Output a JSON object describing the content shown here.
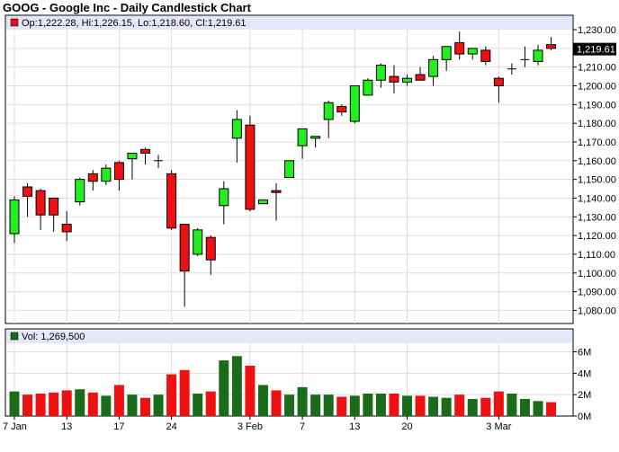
{
  "chart_data": {
    "type": "candlestick",
    "title": "GOOG - Google Inc - Daily Candlestick Chart",
    "legend": {
      "price_label": "Op:1,222.28, Hi:1,226.15, Lo:1,218.60, Cl:1,219.61",
      "volume_label": "Vol: 1,269,500",
      "last_price_label": "1,219.61",
      "last_price": 1219.61
    },
    "price_axis": {
      "ylim": [
        1073,
        1230
      ],
      "ticks": [
        1080,
        1090,
        1100,
        1110,
        1120,
        1130,
        1140,
        1150,
        1160,
        1170,
        1180,
        1190,
        1200,
        1210,
        1220,
        1230
      ],
      "tick_labels": [
        "1,080.00",
        "1,090.00",
        "1,100.00",
        "1,110.00",
        "1,120.00",
        "1,130.00",
        "1,140.00",
        "1,150.00",
        "1,160.00",
        "1,170.00",
        "1,180.00",
        "1,190.00",
        "1,200.00",
        "1,210.00",
        "1,220.00",
        "1,230.00"
      ]
    },
    "volume_axis": {
      "ylim": [
        0,
        6.8
      ],
      "ticks": [
        0,
        2,
        4,
        6
      ],
      "tick_labels": [
        "0M",
        "2M",
        "4M",
        "6M"
      ]
    },
    "x_axis": {
      "labels": [
        {
          "label": "7 Jan",
          "index": 0
        },
        {
          "label": "13",
          "index": 4
        },
        {
          "label": "17",
          "index": 8
        },
        {
          "label": "24",
          "index": 12
        },
        {
          "label": "3 Feb",
          "index": 18
        },
        {
          "label": "7",
          "index": 22
        },
        {
          "label": "13",
          "index": 26
        },
        {
          "label": "20",
          "index": 30
        },
        {
          "label": "3 Mar",
          "index": 37
        }
      ]
    },
    "candles": [
      {
        "open": 1121,
        "high": 1141,
        "low": 1116,
        "close": 1139,
        "volume": 2.3
      },
      {
        "open": 1146,
        "high": 1148,
        "low": 1130,
        "close": 1141,
        "volume": 2.0
      },
      {
        "open": 1144,
        "high": 1145,
        "low": 1123,
        "close": 1131,
        "volume": 2.1
      },
      {
        "open": 1140,
        "high": 1140,
        "low": 1122,
        "close": 1131,
        "volume": 2.2
      },
      {
        "open": 1126,
        "high": 1133,
        "low": 1117,
        "close": 1122,
        "volume": 2.4
      },
      {
        "open": 1138,
        "high": 1151,
        "low": 1136,
        "close": 1150,
        "volume": 2.5
      },
      {
        "open": 1153,
        "high": 1155,
        "low": 1144,
        "close": 1149,
        "volume": 2.2
      },
      {
        "open": 1149,
        "high": 1158,
        "low": 1147,
        "close": 1156,
        "volume": 1.9
      },
      {
        "open": 1159,
        "high": 1160,
        "low": 1144,
        "close": 1150,
        "volume": 2.9
      },
      {
        "open": 1161,
        "high": 1164,
        "low": 1150,
        "close": 1164,
        "volume": 2.0
      },
      {
        "open": 1166,
        "high": 1167,
        "low": 1158,
        "close": 1164,
        "volume": 1.7
      },
      {
        "open": 1160,
        "high": 1163,
        "low": 1156,
        "close": 1160,
        "volume": 2.0
      },
      {
        "open": 1153,
        "high": 1155,
        "low": 1123,
        "close": 1124,
        "volume": 3.9
      },
      {
        "open": 1126,
        "high": 1126,
        "low": 1082,
        "close": 1101,
        "volume": 4.3
      },
      {
        "open": 1110,
        "high": 1124,
        "low": 1109,
        "close": 1123,
        "volume": 2.1
      },
      {
        "open": 1119,
        "high": 1120,
        "low": 1099,
        "close": 1107,
        "volume": 2.3
      },
      {
        "open": 1136,
        "high": 1149,
        "low": 1126,
        "close": 1145,
        "volume": 5.2
      },
      {
        "open": 1172,
        "high": 1187,
        "low": 1159,
        "close": 1182,
        "volume": 5.6
      },
      {
        "open": 1179,
        "high": 1184,
        "low": 1133,
        "close": 1134,
        "volume": 4.7
      },
      {
        "open": 1137,
        "high": 1139,
        "low": 1137,
        "close": 1139,
        "volume": 2.9
      },
      {
        "open": 1144,
        "high": 1148,
        "low": 1128,
        "close": 1143,
        "volume": 2.4
      },
      {
        "open": 1151,
        "high": 1160,
        "low": 1151,
        "close": 1160,
        "volume": 2.0
      },
      {
        "open": 1168,
        "high": 1177,
        "low": 1161,
        "close": 1177,
        "volume": 2.7
      },
      {
        "open": 1172,
        "high": 1173,
        "low": 1167,
        "close": 1173,
        "volume": 2.0
      },
      {
        "open": 1182,
        "high": 1192,
        "low": 1172,
        "close": 1191,
        "volume": 2.0
      },
      {
        "open": 1189,
        "high": 1190,
        "low": 1184,
        "close": 1186,
        "volume": 1.8
      },
      {
        "open": 1181,
        "high": 1200,
        "low": 1180,
        "close": 1200,
        "volume": 1.9
      },
      {
        "open": 1195,
        "high": 1204,
        "low": 1195,
        "close": 1203,
        "volume": 2.1
      },
      {
        "open": 1203,
        "high": 1212,
        "low": 1199,
        "close": 1211,
        "volume": 2.1
      },
      {
        "open": 1205,
        "high": 1211,
        "low": 1196,
        "close": 1202,
        "volume": 2.1
      },
      {
        "open": 1202,
        "high": 1206,
        "low": 1200,
        "close": 1204,
        "volume": 1.9
      },
      {
        "open": 1206,
        "high": 1210,
        "low": 1204,
        "close": 1203,
        "volume": 1.9
      },
      {
        "open": 1205,
        "high": 1216,
        "low": 1200,
        "close": 1214,
        "volume": 1.8
      },
      {
        "open": 1214,
        "high": 1221,
        "low": 1208,
        "close": 1221,
        "volume": 1.7
      },
      {
        "open": 1223,
        "high": 1229,
        "low": 1214,
        "close": 1217,
        "volume": 2.0
      },
      {
        "open": 1217,
        "high": 1219,
        "low": 1214,
        "close": 1220,
        "volume": 1.6
      },
      {
        "open": 1219,
        "high": 1221,
        "low": 1211,
        "close": 1213,
        "volume": 1.7
      },
      {
        "open": 1204,
        "high": 1205,
        "low": 1191,
        "close": 1200,
        "volume": 2.3
      },
      {
        "open": 1209,
        "high": 1212,
        "low": 1206,
        "close": 1209,
        "volume": 2.1
      },
      {
        "open": 1214,
        "high": 1221,
        "low": 1210,
        "close": 1214,
        "volume": 1.6
      },
      {
        "open": 1213,
        "high": 1222,
        "low": 1211,
        "close": 1219,
        "volume": 1.4
      },
      {
        "open": 1222,
        "high": 1226,
        "low": 1219,
        "close": 1220,
        "volume": 1.3
      }
    ],
    "colors": {
      "up_body": "#22ee22",
      "down_body": "#ee1111",
      "up_volume": "#1a6b1a",
      "down_volume": "#ee1111",
      "legend_band": "#e6e6fb",
      "grid": "#dddddd",
      "last_price_box": "#000000"
    }
  }
}
